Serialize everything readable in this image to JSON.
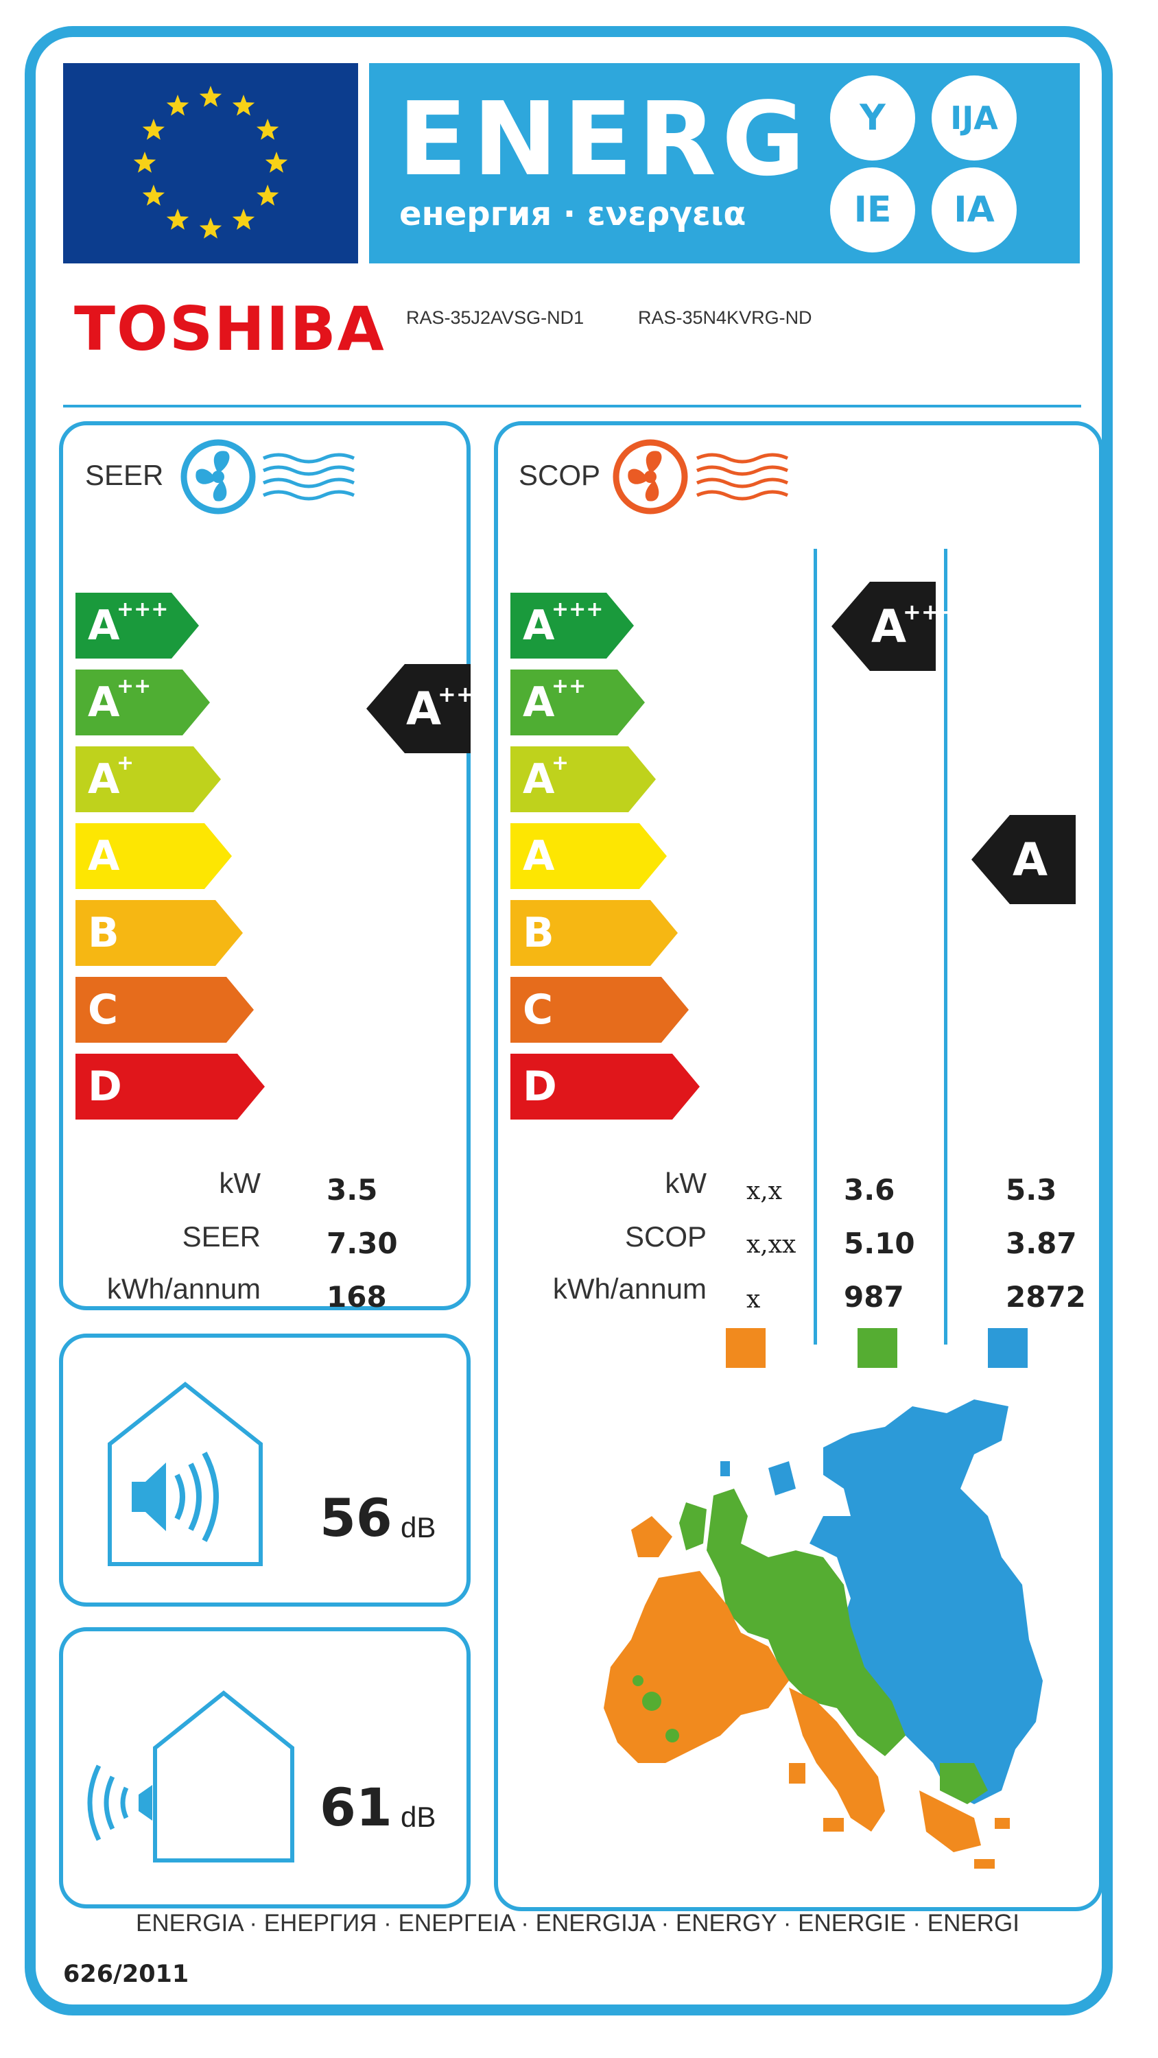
{
  "header": {
    "energy_word": "ENERG",
    "energy_subtitle": "енергия · ενεργεια",
    "language_suffixes": [
      "Y",
      "IJA",
      "IE",
      "IA"
    ]
  },
  "supplier": {
    "brand": "TOSHIBA",
    "indoor_model": "RAS-35J2AVSG-ND1",
    "outdoor_model": "RAS-35N4KVRG-ND"
  },
  "scale": [
    {
      "letter": "A",
      "sup": "+++",
      "color": "#1a9a3c"
    },
    {
      "letter": "A",
      "sup": "++",
      "color": "#4fae33"
    },
    {
      "letter": "A",
      "sup": "+",
      "color": "#bfd21c"
    },
    {
      "letter": "A",
      "sup": "",
      "color": "#fde602"
    },
    {
      "letter": "B",
      "sup": "",
      "color": "#f6b713"
    },
    {
      "letter": "C",
      "sup": "",
      "color": "#e66c1c"
    },
    {
      "letter": "D",
      "sup": "",
      "color": "#e0161b"
    }
  ],
  "cooling": {
    "title": "SEER",
    "rating": {
      "letter": "A",
      "sup": "++"
    },
    "labels": {
      "kw": "kW",
      "seer": "SEER",
      "annual": "kWh/annum"
    },
    "values": {
      "kw": "3.5",
      "seer": "7.30",
      "annual": "168"
    }
  },
  "heating": {
    "title": "SCOP",
    "labels": {
      "kw": "kW",
      "scop": "SCOP",
      "annual": "kWh/annum"
    },
    "climates": [
      {
        "zone": "warmer",
        "color": "#f18a1e",
        "kw": "x,x",
        "scop": "x,xx",
        "annual": "x",
        "rating": null
      },
      {
        "zone": "average",
        "color": "#55ad32",
        "kw": "3.6",
        "scop": "5.10",
        "annual": "987",
        "rating": {
          "letter": "A",
          "sup": "+++"
        }
      },
      {
        "zone": "colder",
        "color": "#2c9ad8",
        "kw": "5.3",
        "scop": "3.87",
        "annual": "2872",
        "rating": {
          "letter": "A",
          "sup": ""
        }
      }
    ]
  },
  "noise": {
    "indoor_value": "56",
    "outdoor_value": "61",
    "unit": "dB"
  },
  "footer": {
    "languages": "ENERGIA · ЕНЕРГИЯ · ΕΝΕΡΓΕΙΑ · ENERGIJA · ENERGY · ENERGIE · ENERGI",
    "regulation": "626/2011"
  },
  "icons": [
    "eu-flag-icon",
    "fan-cooling-icon",
    "fan-heating-icon",
    "speaker-indoor-icon",
    "speaker-outdoor-icon",
    "europe-climate-map-icon"
  ]
}
